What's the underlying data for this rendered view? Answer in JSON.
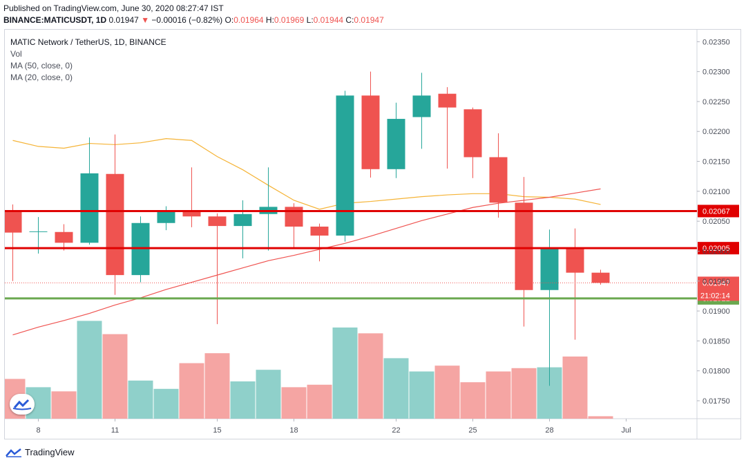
{
  "header": {
    "published": "Published on TradingView.com, June 30, 2020 08:27:47 IST",
    "symbol": "BINANCE:MATICUSDT, 1D",
    "last": "0.01947",
    "arrow": "▼",
    "change": "−0.00016 (−0.82%)",
    "o_label": "O:",
    "o": "0.01964",
    "h_label": "H:",
    "h": "0.01969",
    "l_label": "L:",
    "l": "0.01944",
    "c_label": "C:",
    "c": "0.01947"
  },
  "legend": {
    "title": "MATIC Network / TetherUS, 1D, BINANCE",
    "vol": "Vol",
    "ma50": "MA (50, close, 0)",
    "ma20": "MA (20, close, 0)"
  },
  "footer": {
    "brand": "TradingView"
  },
  "colors": {
    "up": "#26a69a",
    "down": "#ef5350",
    "up_vol": "#8fd0ca",
    "down_vol": "#f5a5a3",
    "ma50": "#ef5350",
    "ma20": "#f5b335",
    "resistance": "#e00000",
    "support": "#6aa84f"
  },
  "chart_data": {
    "type": "candlestick",
    "x_ticks": [
      {
        "i": 1,
        "label": "8"
      },
      {
        "i": 4,
        "label": "11"
      },
      {
        "i": 8,
        "label": "15"
      },
      {
        "i": 11,
        "label": "18"
      },
      {
        "i": 15,
        "label": "22"
      },
      {
        "i": 18,
        "label": "25"
      },
      {
        "i": 21,
        "label": "28"
      },
      {
        "i": 24,
        "label": "Jul"
      }
    ],
    "y_ticks": [
      0.0235,
      0.023,
      0.0225,
      0.022,
      0.0215,
      0.021,
      0.0205,
      0.02,
      0.0195,
      0.019,
      0.0185,
      0.018,
      0.0175
    ],
    "y_tick_labels": [
      "0.02350",
      "0.02300",
      "0.02250",
      "0.02200",
      "0.02150",
      "0.02100",
      "0.02050",
      "0.02000",
      "0.01950",
      "0.01900",
      "0.01850",
      "0.01800",
      "0.01750"
    ],
    "ylim": [
      0.0172,
      0.0237
    ],
    "candles": [
      {
        "o": 0.02066,
        "h": 0.02078,
        "l": 0.0195,
        "c": 0.02031
      },
      {
        "o": 0.02032,
        "h": 0.02057,
        "l": 0.01996,
        "c": 0.02033
      },
      {
        "o": 0.02032,
        "h": 0.02045,
        "l": 0.02001,
        "c": 0.02014
      },
      {
        "o": 0.02014,
        "h": 0.0219,
        "l": 0.02011,
        "c": 0.0213
      },
      {
        "o": 0.02129,
        "h": 0.02195,
        "l": 0.01927,
        "c": 0.0196
      },
      {
        "o": 0.0196,
        "h": 0.02058,
        "l": 0.01948,
        "c": 0.02047
      },
      {
        "o": 0.02047,
        "h": 0.02075,
        "l": 0.02035,
        "c": 0.02068
      },
      {
        "o": 0.02068,
        "h": 0.0214,
        "l": 0.0204,
        "c": 0.02058
      },
      {
        "o": 0.02058,
        "h": 0.02063,
        "l": 0.01878,
        "c": 0.02042
      },
      {
        "o": 0.02042,
        "h": 0.02085,
        "l": 0.01988,
        "c": 0.02062
      },
      {
        "o": 0.02062,
        "h": 0.0214,
        "l": 0.02001,
        "c": 0.02074
      },
      {
        "o": 0.02074,
        "h": 0.0208,
        "l": 0.02005,
        "c": 0.02041
      },
      {
        "o": 0.02041,
        "h": 0.02046,
        "l": 0.01983,
        "c": 0.02026
      },
      {
        "o": 0.02026,
        "h": 0.02268,
        "l": 0.02016,
        "c": 0.0226
      },
      {
        "o": 0.0226,
        "h": 0.023,
        "l": 0.02123,
        "c": 0.02137
      },
      {
        "o": 0.02137,
        "h": 0.02248,
        "l": 0.02122,
        "c": 0.02221
      },
      {
        "o": 0.02224,
        "h": 0.02298,
        "l": 0.02171,
        "c": 0.0226
      },
      {
        "o": 0.02263,
        "h": 0.02274,
        "l": 0.02138,
        "c": 0.0224
      },
      {
        "o": 0.02237,
        "h": 0.0224,
        "l": 0.02122,
        "c": 0.02157
      },
      {
        "o": 0.02157,
        "h": 0.02197,
        "l": 0.02056,
        "c": 0.02081
      },
      {
        "o": 0.02081,
        "h": 0.02124,
        "l": 0.01874,
        "c": 0.01935
      },
      {
        "o": 0.01935,
        "h": 0.02036,
        "l": 0.01775,
        "c": 0.02005
      },
      {
        "o": 0.02005,
        "h": 0.02038,
        "l": 0.01852,
        "c": 0.01964
      },
      {
        "o": 0.01964,
        "h": 0.01969,
        "l": 0.01944,
        "c": 0.01947
      }
    ],
    "volume": [
      {
        "v": 0.48,
        "up": false
      },
      {
        "v": 0.38,
        "up": true
      },
      {
        "v": 0.33,
        "up": false
      },
      {
        "v": 1.18,
        "up": true
      },
      {
        "v": 1.02,
        "up": false
      },
      {
        "v": 0.46,
        "up": true
      },
      {
        "v": 0.36,
        "up": true
      },
      {
        "v": 0.67,
        "up": false
      },
      {
        "v": 0.79,
        "up": false
      },
      {
        "v": 0.45,
        "up": true
      },
      {
        "v": 0.59,
        "up": true
      },
      {
        "v": 0.38,
        "up": false
      },
      {
        "v": 0.41,
        "up": false
      },
      {
        "v": 1.1,
        "up": true
      },
      {
        "v": 1.03,
        "up": false
      },
      {
        "v": 0.73,
        "up": true
      },
      {
        "v": 0.57,
        "up": true
      },
      {
        "v": 0.64,
        "up": false
      },
      {
        "v": 0.44,
        "up": false
      },
      {
        "v": 0.57,
        "up": false
      },
      {
        "v": 0.61,
        "up": false
      },
      {
        "v": 0.62,
        "up": true
      },
      {
        "v": 0.75,
        "up": false
      },
      {
        "v": 0.03,
        "up": false
      }
    ],
    "ma50": [
      0.0186,
      0.01873,
      0.01884,
      0.01896,
      0.0191,
      0.01922,
      0.01936,
      0.01948,
      0.0196,
      0.01972,
      0.01984,
      0.01993,
      0.02003,
      0.02013,
      0.02025,
      0.02038,
      0.02051,
      0.02062,
      0.02073,
      0.0208,
      0.02085,
      0.0209,
      0.02097,
      0.02104
    ],
    "ma20": [
      0.02185,
      0.02175,
      0.02172,
      0.0218,
      0.02178,
      0.02181,
      0.02188,
      0.02185,
      0.02158,
      0.02136,
      0.0211,
      0.02085,
      0.0207,
      0.0208,
      0.02083,
      0.02087,
      0.02091,
      0.02094,
      0.02096,
      0.02096,
      0.02091,
      0.0209,
      0.02087,
      0.02078
    ],
    "hlines": [
      {
        "value": 0.02067,
        "label": "0.02067",
        "color": "#e00000"
      },
      {
        "value": 0.02005,
        "label": "0.02005",
        "color": "#e00000"
      },
      {
        "value": 0.01921,
        "label": "0.01921",
        "color": "#6aa84f"
      }
    ],
    "last_price": {
      "value": 0.01947,
      "label": "0.01947",
      "countdown": "21:02:14"
    }
  }
}
